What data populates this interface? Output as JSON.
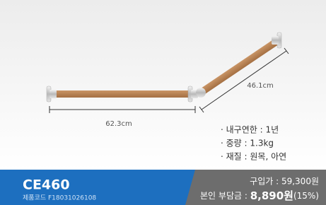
{
  "product": {
    "dimensions": {
      "length_1": "62.3cm",
      "length_2": "46.1cm"
    },
    "specs": [
      "· 내구연한 : 1년",
      "· 중량 : 1.3kg",
      "· 재질 : 원목, 아연"
    ],
    "model": "CE460",
    "code": "제품코드 F18031026108",
    "price": {
      "purchase": "구입가 : 59,300원",
      "copay_label": "본인 부담금 : ",
      "copay": "8,890원",
      "copay_rate": "(15%)"
    }
  }
}
